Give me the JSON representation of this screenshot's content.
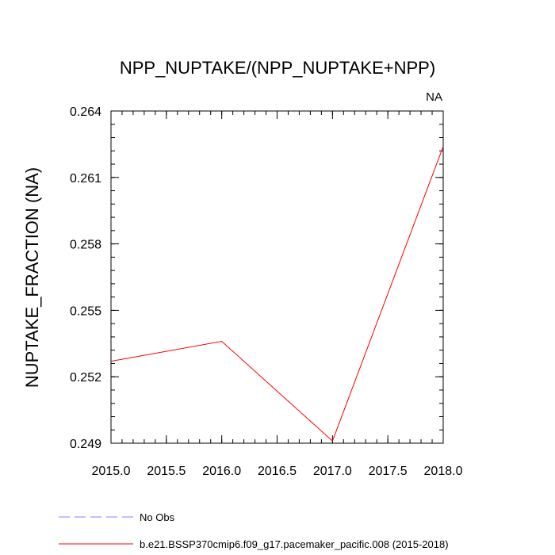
{
  "chart_data": {
    "type": "line",
    "title": "NPP_NUPTAKE/(NPP_NUPTAKE+NPP)",
    "corner_label": "NA",
    "xlabel": "",
    "ylabel": "NUPTAKE_FRACTION  (NA)",
    "xlim": [
      2015.0,
      2018.0
    ],
    "ylim": [
      0.249,
      0.264
    ],
    "x_ticks": [
      "2015.0",
      "2015.5",
      "2016.0",
      "2016.5",
      "2017.0",
      "2017.5",
      "2018.0"
    ],
    "y_ticks": [
      "0.249",
      "0.252",
      "0.255",
      "0.258",
      "0.261",
      "0.264"
    ],
    "grid": false,
    "legend_position": "bottom-left",
    "series": [
      {
        "name": "No Obs",
        "color": "#8080ff",
        "style": "dashed",
        "x": [],
        "values": []
      },
      {
        "name": "b.e21.BSSP370cmip6.f09_g17.pacemaker_pacific.008 (2015-2018)",
        "color": "#ff0000",
        "style": "solid",
        "x": [
          2015,
          2016,
          2017,
          2018
        ],
        "values": [
          0.2527,
          0.2536,
          0.2491,
          0.2624
        ]
      }
    ]
  }
}
